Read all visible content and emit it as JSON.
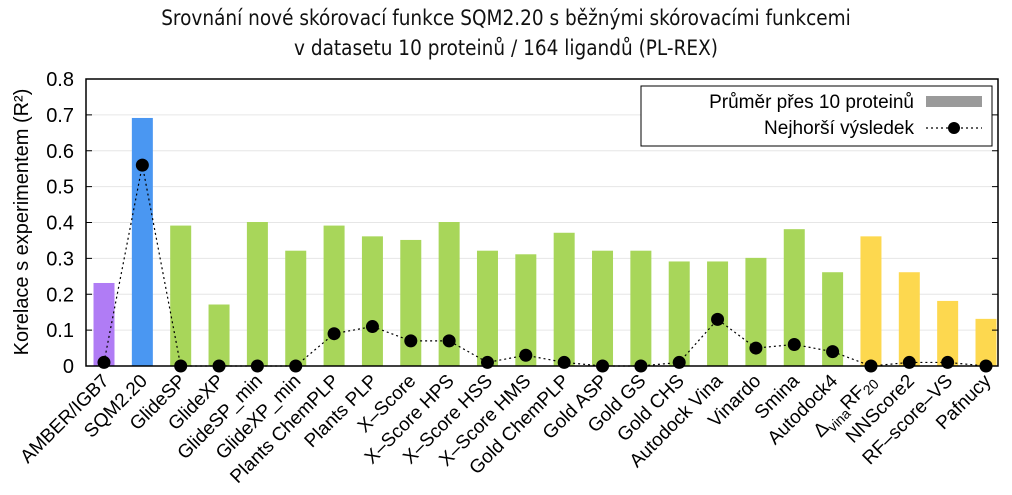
{
  "title": {
    "line1": "Srovnání nové skórovací funkce SQM2.20 s běžnými skórovacími funkcemi",
    "line2": "v datasetu 10 proteinů / 164 ligandů (PL-REX)"
  },
  "legend": {
    "bar_label": "Průměr přes 10 proteinů",
    "line_label": "Nejhorší výsledek"
  },
  "colors": {
    "purple": "#b07cf5",
    "blue": "#4a97f2",
    "green": "#a8d65a",
    "yellow": "#fdd84f",
    "legend_bar": "#9a9a9a"
  },
  "chart_data": {
    "type": "bar",
    "title": "Srovnání nové skórovací funkce SQM2.20 s běžnými skórovacími funkcemi v datasetu 10 proteinů / 164 ligandů (PL-REX)",
    "xlabel": "",
    "ylabel": "Korelace s experimentem (R²)",
    "ylim": [
      0,
      0.8
    ],
    "yticks": [
      "0",
      "0.1",
      "0.2",
      "0.3",
      "0.4",
      "0.5",
      "0.6",
      "0.7",
      "0.8"
    ],
    "grid": true,
    "legend_position": "top-right",
    "categories": [
      "AMBER/IGB7",
      "SQM2.20",
      "GlideSP",
      "GlideXP",
      "GlideSP_min",
      "GlideXP_min",
      "Plants ChemPLP",
      "Plants PLP",
      "X–Score",
      "X–Score HPS",
      "X–Score HSS",
      "X–Score HMS",
      "Gold ChemPLP",
      "Gold ASP",
      "Gold GS",
      "Gold CHS",
      "Autodock Vina",
      "Vinardo",
      "Smina",
      "Autodock4",
      "ΔvinaRF20",
      "NNScore2",
      "RF–score–VS",
      "Pafnucy"
    ],
    "bar_colors": [
      "purple",
      "blue",
      "green",
      "green",
      "green",
      "green",
      "green",
      "green",
      "green",
      "green",
      "green",
      "green",
      "green",
      "green",
      "green",
      "green",
      "green",
      "green",
      "green",
      "green",
      "yellow",
      "yellow",
      "yellow",
      "yellow"
    ],
    "series": [
      {
        "name": "Průměr přes 10 proteinů",
        "type": "bar",
        "values": [
          0.23,
          0.69,
          0.39,
          0.17,
          0.4,
          0.32,
          0.39,
          0.36,
          0.35,
          0.4,
          0.32,
          0.31,
          0.37,
          0.32,
          0.32,
          0.29,
          0.29,
          0.3,
          0.38,
          0.26,
          0.36,
          0.26,
          0.18,
          0.13
        ]
      },
      {
        "name": "Nejhorší výsledek",
        "type": "line",
        "style": "dotted with circle markers",
        "values": [
          0.01,
          0.56,
          0.0,
          0.0,
          0.0,
          0.0,
          0.09,
          0.11,
          0.07,
          0.07,
          0.01,
          0.03,
          0.01,
          0.0,
          0.0,
          0.01,
          0.13,
          0.05,
          0.06,
          0.04,
          0.0,
          0.01,
          0.01,
          0.0
        ]
      }
    ]
  }
}
